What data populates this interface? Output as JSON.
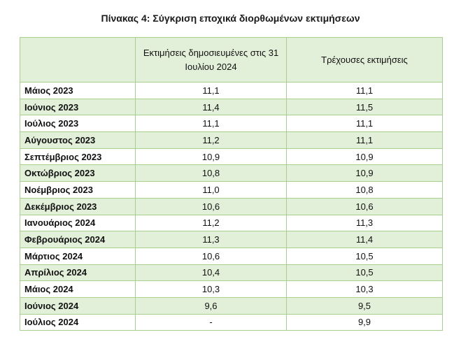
{
  "title": "Πίνακας 4: Σύγκριση εποχικά διορθωμένων εκτιμήσεων",
  "table": {
    "header": [
      "Εκτιμήσεις δημοσιευμένες στις 31 Ιουλίου 2024",
      "Τρέχουσες εκτιμήσεις"
    ],
    "rows": [
      [
        "Μάιος 2023",
        "11,1",
        "11,1"
      ],
      [
        "Ιούνιος 2023",
        "11,4",
        "11,5"
      ],
      [
        "Ιούλιος 2023",
        "11,1",
        "11,1"
      ],
      [
        "Αύγουστος 2023",
        "11,2",
        "11,1"
      ],
      [
        "Σεπτέμβριος 2023",
        "10,9",
        "10,9"
      ],
      [
        "Οκτώβριος 2023",
        "10,8",
        "10,9"
      ],
      [
        "Νοέμβριος 2023",
        "11,0",
        "10,8"
      ],
      [
        "Δεκέμβριος 2023",
        "10,6",
        "10,6"
      ],
      [
        "Ιανουάριος 2024",
        "11,2",
        "11,3"
      ],
      [
        "Φεβρουάριος 2024",
        "11,3",
        "11,4"
      ],
      [
        "Μάρτιος 2024",
        "10,6",
        "10,5"
      ],
      [
        "Απρίλιος 2024",
        "10,4",
        "10,5"
      ],
      [
        "Μάιος 2024",
        "10,3",
        "10,3"
      ],
      [
        "Ιούνιος 2024",
        "9,6",
        "9,5"
      ],
      [
        "Ιούλιος 2024",
        "-",
        "9,9"
      ]
    ]
  }
}
